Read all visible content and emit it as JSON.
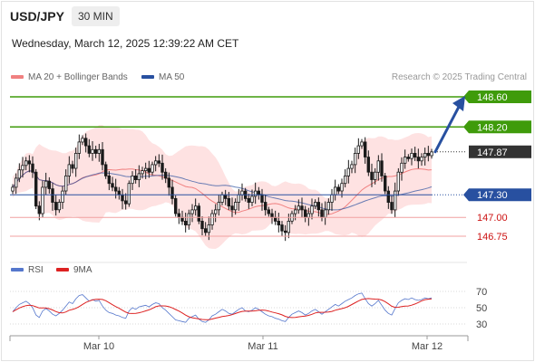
{
  "header": {
    "symbol": "USD/JPY",
    "timeframe": "30 MIN",
    "datetime": "Wednesday, March 12, 2025 12:39:22 AM CET"
  },
  "legend": {
    "ma20_label": "MA 20 + Bollinger Bands",
    "ma50_label": "MA 50",
    "credit": "Research © 2025 Trading Central"
  },
  "rsi_legend": {
    "rsi_label": "RSI",
    "ma9_label": "9MA"
  },
  "colors": {
    "green": "#3f9b0b",
    "blue": "#2850a0",
    "red": "#cc1111",
    "dark": "#333333",
    "band": "#fdd8d8",
    "ma20": "#f08080",
    "rsi": "#5577cc",
    "rsi_ma": "#dd2222"
  },
  "chart_data": [
    {
      "type": "candlestick",
      "title": "USD/JPY",
      "x_ticks": [
        "Mar 10",
        "Mar 11",
        "Mar 12"
      ],
      "ylim": [
        146.5,
        148.8
      ],
      "price_levels": [
        {
          "value": 148.6,
          "label": "148.60",
          "style": "resistance",
          "color": "#3f9b0b"
        },
        {
          "value": 148.2,
          "label": "148.20",
          "style": "resistance",
          "color": "#3f9b0b"
        },
        {
          "value": 147.87,
          "label": "147.87",
          "style": "last",
          "color": "#333333"
        },
        {
          "value": 147.3,
          "label": "147.30",
          "style": "pivot",
          "color": "#2850a0"
        },
        {
          "value": 147.0,
          "label": "147.00",
          "style": "support",
          "color": "#cc1111"
        },
        {
          "value": 146.75,
          "label": "146.75",
          "style": "support",
          "color": "#cc1111"
        }
      ],
      "closes": [
        147.4,
        147.52,
        147.63,
        147.69,
        147.75,
        147.71,
        147.6,
        147.15,
        147.05,
        147.4,
        147.48,
        147.38,
        147.2,
        147.1,
        147.2,
        147.35,
        147.55,
        147.7,
        147.65,
        147.85,
        148.0,
        148.05,
        147.95,
        147.85,
        147.9,
        147.85,
        147.9,
        147.7,
        147.55,
        147.45,
        147.4,
        147.35,
        147.3,
        147.22,
        147.18,
        147.45,
        147.55,
        147.5,
        147.58,
        147.62,
        147.65,
        147.6,
        147.7,
        147.75,
        147.72,
        147.6,
        147.52,
        147.4,
        147.25,
        147.05,
        147.0,
        146.95,
        146.9,
        147.05,
        147.1,
        147.15,
        146.95,
        146.85,
        146.8,
        146.9,
        147.05,
        147.1,
        147.2,
        147.3,
        147.25,
        147.15,
        147.1,
        147.2,
        147.3,
        147.35,
        147.25,
        147.2,
        147.28,
        147.35,
        147.3,
        147.2,
        147.1,
        147.05,
        147.0,
        146.95,
        146.9,
        146.82,
        146.8,
        146.95,
        147.05,
        147.1,
        147.15,
        147.1,
        147.0,
        147.05,
        147.15,
        147.2,
        147.1,
        147.0,
        147.1,
        147.2,
        147.3,
        147.4,
        147.35,
        147.45,
        147.55,
        147.65,
        147.7,
        147.85,
        147.95,
        148.0,
        147.8,
        147.6,
        147.5,
        147.6,
        147.75,
        147.55,
        147.35,
        147.2,
        147.1,
        147.35,
        147.6,
        147.72,
        147.8,
        147.78,
        147.85,
        147.8,
        147.75,
        147.8,
        147.85,
        147.82,
        147.87
      ],
      "ma20_approx": "moving average of closes (20)",
      "ma50_approx": "moving average of closes (50)",
      "bollinger_bands": "MA20 ± 2 std",
      "projection_arrow": {
        "from": 147.87,
        "to": 148.6
      }
    },
    {
      "type": "line",
      "title": "RSI",
      "ylim": [
        20,
        80
      ],
      "y_ticks": [
        30,
        50,
        70
      ],
      "series": [
        {
          "name": "RSI",
          "color": "#5577cc",
          "values": [
            45,
            50,
            54,
            56,
            58,
            55,
            50,
            41,
            38,
            46,
            49,
            46,
            42,
            40,
            43,
            47,
            52,
            57,
            55,
            61,
            65,
            66,
            62,
            58,
            60,
            58,
            59,
            52,
            47,
            44,
            43,
            41,
            40,
            38,
            37,
            46,
            50,
            48,
            51,
            52,
            53,
            51,
            54,
            56,
            55,
            50,
            47,
            43,
            39,
            35,
            34,
            33,
            32,
            37,
            39,
            41,
            36,
            33,
            32,
            35,
            40,
            42,
            45,
            48,
            46,
            43,
            42,
            45,
            48,
            50,
            46,
            45,
            47,
            50,
            48,
            45,
            42,
            40,
            39,
            37,
            36,
            34,
            33,
            38,
            42,
            44,
            46,
            44,
            41,
            43,
            46,
            48,
            45,
            42,
            45,
            48,
            51,
            54,
            52,
            55,
            58,
            60,
            62,
            65,
            67,
            68,
            61,
            55,
            52,
            55,
            59,
            53,
            47,
            43,
            41,
            49,
            56,
            59,
            61,
            60,
            62,
            60,
            59,
            60,
            62,
            61,
            62
          ]
        },
        {
          "name": "9MA",
          "color": "#dd2222"
        }
      ]
    }
  ]
}
